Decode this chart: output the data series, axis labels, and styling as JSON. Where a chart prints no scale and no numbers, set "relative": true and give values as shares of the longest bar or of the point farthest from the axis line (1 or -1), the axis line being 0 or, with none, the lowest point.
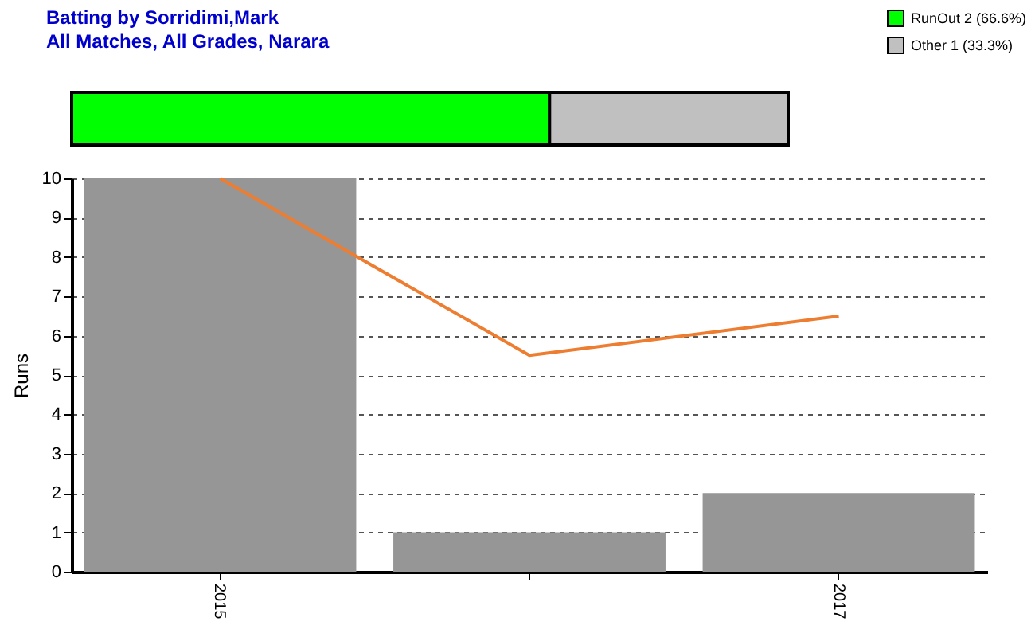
{
  "chart_data": [
    {
      "type": "bar",
      "title": "Batting by Sorridimi,Mark",
      "subtitle": "All Matches, All Grades, Narara",
      "orientation": "horizontal",
      "stacked": true,
      "relative": true,
      "categories": [
        null
      ],
      "legend": "top right",
      "series": [
        {
          "name": "RunOut 2 (66.6%)",
          "color": "#00ff00",
          "values": [
            0.667
          ]
        },
        {
          "name": "Other 1 (33.3%)",
          "color": "#c0c0c0",
          "values": [
            0.333
          ]
        }
      ]
    },
    {
      "type": "bar",
      "categories": [
        "2015",
        null,
        "2017"
      ],
      "ylabel": "Runs",
      "ylim": [
        0,
        10
      ],
      "yticks": [
        0,
        1,
        2,
        3,
        4,
        5,
        6,
        7,
        8,
        9,
        10
      ],
      "grid": "y",
      "marker": "none",
      "series": [
        {
          "color": "#969696",
          "values": [
            10,
            1,
            2
          ]
        },
        {
          "type": "line",
          "color": "#ed7d31",
          "values": [
            10,
            5.5,
            6.5
          ]
        }
      ]
    }
  ]
}
